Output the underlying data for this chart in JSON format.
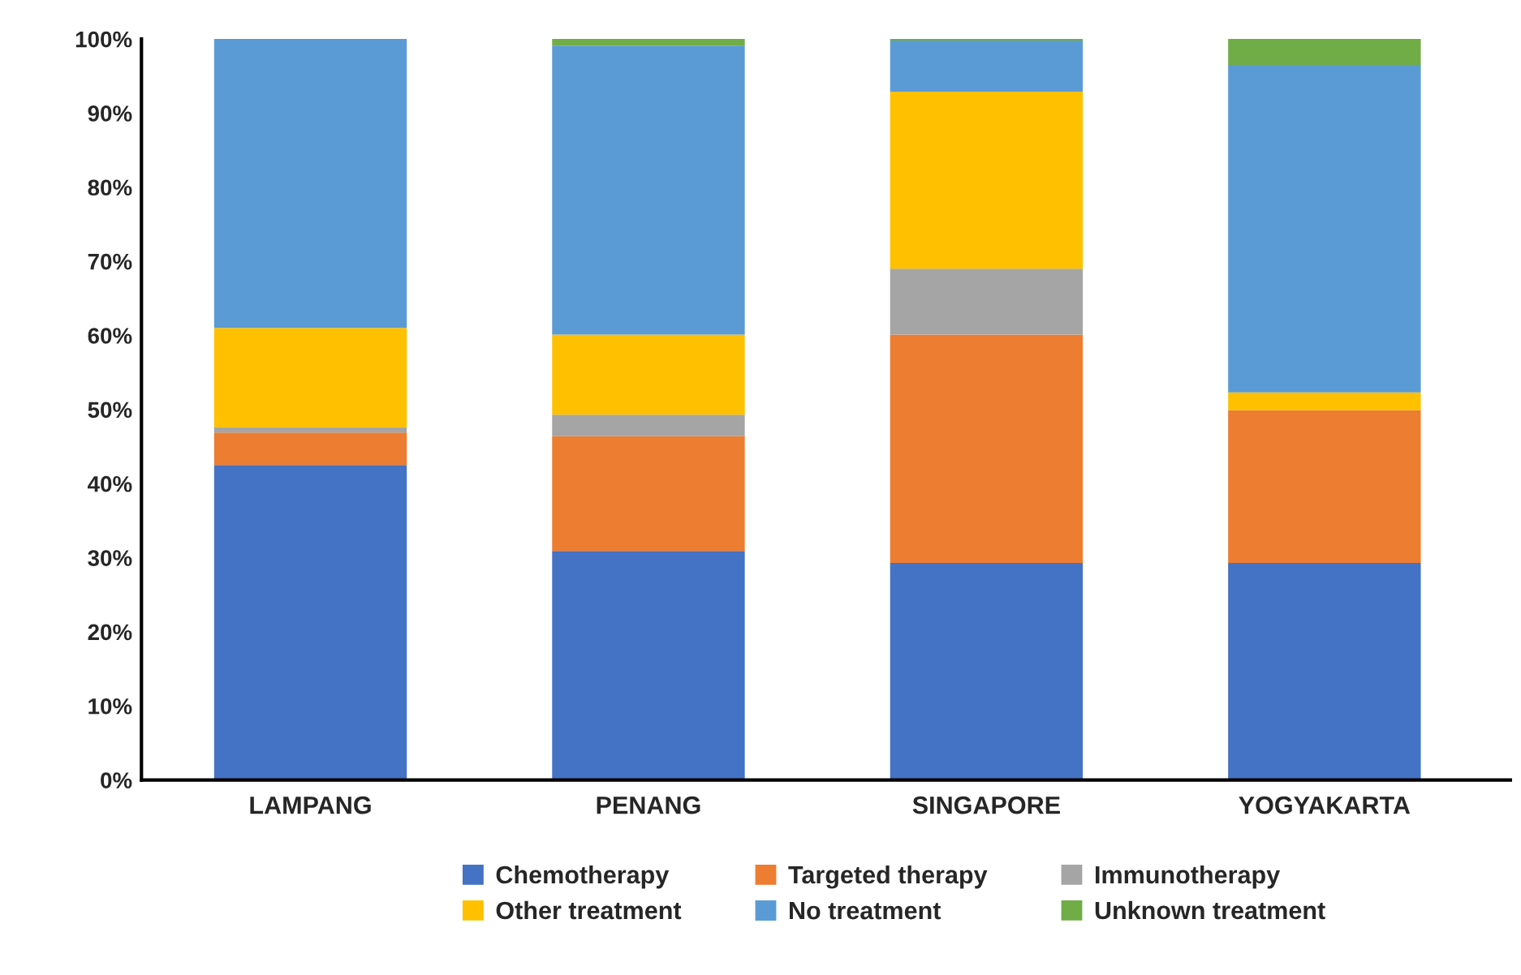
{
  "chart_data": {
    "type": "bar",
    "stacked": true,
    "categories": [
      "LAMPANG",
      "PENANG",
      "SINGAPORE",
      "YOGYAKARTA"
    ],
    "series": [
      {
        "name": "Chemotherapy",
        "color": "#4472c4",
        "values": [
          42.5,
          30.9,
          29.3,
          29.3
        ]
      },
      {
        "name": "Targeted therapy",
        "color": "#ed7d31",
        "values": [
          4.4,
          15.5,
          30.8,
          20.6
        ]
      },
      {
        "name": "Immunotherapy",
        "color": "#a5a5a5",
        "values": [
          0.7,
          2.9,
          8.9,
          0
        ]
      },
      {
        "name": "Other treatment",
        "color": "#ffc000",
        "values": [
          13.4,
          10.8,
          23.9,
          2.4
        ]
      },
      {
        "name": "No treatment",
        "color": "#5b9bd5",
        "values": [
          39.0,
          39.0,
          6.9,
          44.2
        ]
      },
      {
        "name": "Unknown treatment",
        "color": "#70ad47",
        "values": [
          0,
          0.9,
          0.2,
          3.5
        ]
      }
    ],
    "ylim": [
      0,
      100
    ],
    "yticks": [
      {
        "value": 0,
        "label": "0%"
      },
      {
        "value": 10,
        "label": "10%"
      },
      {
        "value": 20,
        "label": "20%"
      },
      {
        "value": 30,
        "label": "30%"
      },
      {
        "value": 40,
        "label": "40%"
      },
      {
        "value": 50,
        "label": "50%"
      },
      {
        "value": 60,
        "label": "60%"
      },
      {
        "value": 70,
        "label": "70%"
      },
      {
        "value": 80,
        "label": "80%"
      },
      {
        "value": 90,
        "label": "90%"
      },
      {
        "value": 100,
        "label": "100%"
      }
    ],
    "grid": false,
    "legend": "bottom"
  }
}
